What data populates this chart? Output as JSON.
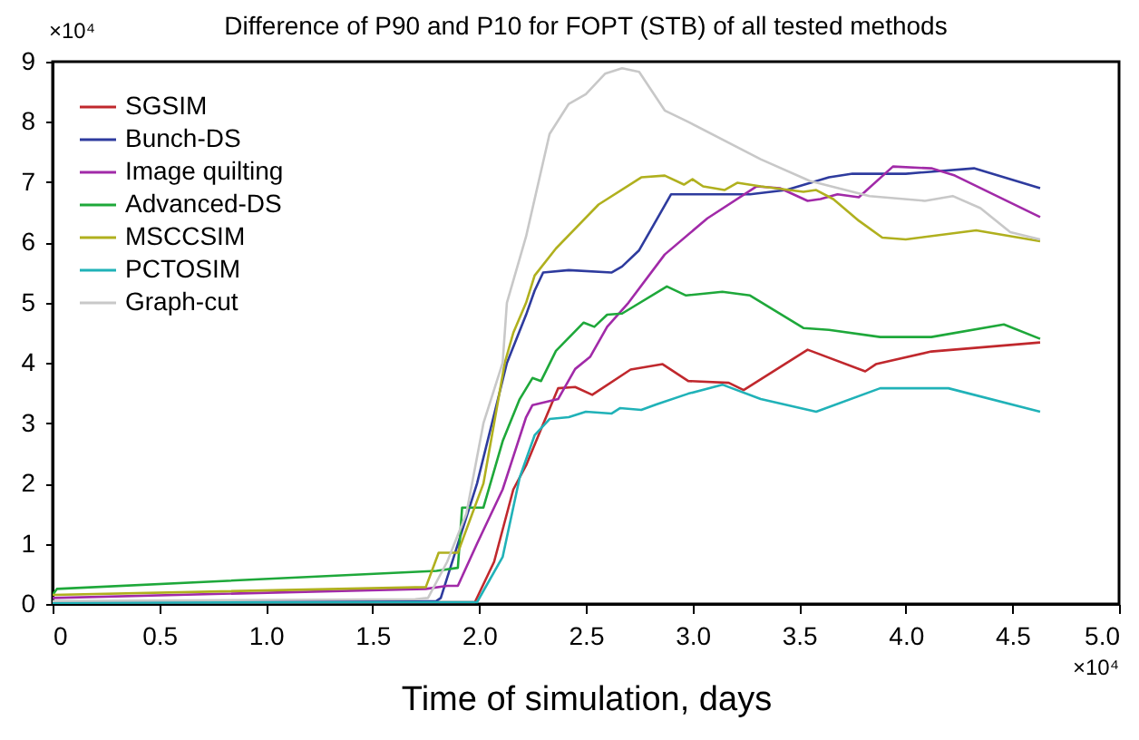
{
  "chart_data": {
    "type": "line",
    "title": "Difference of P90 and P10 for FOPT (STB) of all tested methods",
    "xlabel": "Time of simulation, days",
    "annotations": [
      "×10⁴",
      "×10⁴"
    ],
    "xlim": [
      0,
      5
    ],
    "xticks": [
      0,
      0.5,
      {
        "value": 1,
        "label": "1.0"
      },
      1.5,
      {
        "value": 2,
        "label": "2.0"
      },
      2.5,
      {
        "value": 3,
        "label": "3.0"
      },
      3.5,
      {
        "value": 4,
        "label": "4.0"
      },
      4.5,
      {
        "value": 5,
        "label": "5.0"
      }
    ],
    "ylim": [
      0,
      9
    ],
    "yticks": [
      0,
      1,
      2,
      3,
      4,
      5,
      6,
      7,
      8,
      9
    ],
    "grid": false,
    "legend": "top left",
    "line_style": "solid",
    "series": [
      {
        "name": "SGSIM",
        "color": "#c0282d",
        "x": [
          0,
          1.9,
          1.98,
          2.07,
          2.16,
          2.22,
          2.29,
          2.37,
          2.45,
          2.53,
          2.71,
          2.86,
          2.98,
          3.17,
          3.24,
          3.54,
          3.81,
          3.86,
          4.12,
          4.63
        ],
        "values": [
          0.02,
          0.03,
          0.03,
          0.7,
          1.9,
          2.3,
          2.9,
          3.58,
          3.6,
          3.47,
          3.89,
          3.98,
          3.7,
          3.67,
          3.55,
          4.22,
          3.86,
          3.98,
          4.19,
          4.34
        ]
      },
      {
        "name": "Bunch-DS",
        "color": "#2e3b9e",
        "x": [
          0,
          1.8,
          1.82,
          1.99,
          2.13,
          2.22,
          2.26,
          2.3,
          2.42,
          2.62,
          2.67,
          2.75,
          2.9,
          3.27,
          3.44,
          3.64,
          3.75,
          4.0,
          4.32,
          4.63
        ],
        "values": [
          0.03,
          0.05,
          0.1,
          2.0,
          4.0,
          4.8,
          5.2,
          5.5,
          5.54,
          5.5,
          5.6,
          5.87,
          6.8,
          6.8,
          6.87,
          7.08,
          7.14,
          7.14,
          7.23,
          6.9
        ]
      },
      {
        "name": "Image quilting",
        "color": "#a12aa8",
        "x": [
          0,
          1.75,
          1.85,
          1.9,
          1.99,
          2.11,
          2.22,
          2.25,
          2.37,
          2.45,
          2.52,
          2.6,
          2.7,
          2.87,
          3.07,
          3.3,
          3.41,
          3.54,
          3.6,
          3.68,
          3.78,
          3.94,
          4.12,
          4.23,
          4.63
        ],
        "values": [
          0.1,
          0.25,
          0.3,
          0.3,
          1.0,
          1.9,
          3.1,
          3.3,
          3.4,
          3.9,
          4.1,
          4.6,
          5.0,
          5.8,
          6.4,
          6.93,
          6.9,
          6.69,
          6.72,
          6.8,
          6.75,
          7.26,
          7.23,
          7.11,
          6.42
        ]
      },
      {
        "name": "Advanced-DS",
        "color": "#1ea83a",
        "x": [
          0,
          0.02,
          1.8,
          1.9,
          1.92,
          2.02,
          2.11,
          2.19,
          2.25,
          2.29,
          2.36,
          2.49,
          2.54,
          2.6,
          2.67,
          2.88,
          2.97,
          3.14,
          3.27,
          3.52,
          3.64,
          3.88,
          4.12,
          4.46,
          4.63
        ],
        "values": [
          0.15,
          0.25,
          0.55,
          0.6,
          1.6,
          1.6,
          2.7,
          3.4,
          3.75,
          3.7,
          4.2,
          4.67,
          4.6,
          4.8,
          4.82,
          5.27,
          5.12,
          5.18,
          5.12,
          4.58,
          4.55,
          4.43,
          4.43,
          4.64,
          4.4
        ]
      },
      {
        "name": "MSCCSIM",
        "color": "#b0b01e",
        "x": [
          0,
          1.75,
          1.81,
          1.9,
          2.02,
          2.12,
          2.16,
          2.22,
          2.26,
          2.36,
          2.56,
          2.76,
          2.87,
          2.96,
          3.0,
          3.05,
          3.15,
          3.21,
          3.32,
          3.52,
          3.58,
          3.66,
          3.78,
          3.89,
          4.0,
          4.33,
          4.63
        ],
        "values": [
          0.15,
          0.28,
          0.85,
          0.85,
          2.0,
          4.0,
          4.5,
          5.0,
          5.45,
          5.9,
          6.63,
          7.08,
          7.11,
          6.96,
          7.05,
          6.93,
          6.87,
          6.99,
          6.93,
          6.84,
          6.87,
          6.72,
          6.36,
          6.08,
          6.05,
          6.2,
          6.02
        ]
      },
      {
        "name": "PCTOSIM",
        "color": "#20b2b8",
        "x": [
          0,
          1.9,
          1.99,
          2.11,
          2.19,
          2.26,
          2.33,
          2.42,
          2.5,
          2.62,
          2.66,
          2.76,
          2.83,
          2.98,
          3.14,
          3.32,
          3.58,
          3.88,
          4.2,
          4.63
        ],
        "values": [
          0.02,
          0.03,
          0.03,
          0.78,
          2.1,
          2.8,
          3.07,
          3.1,
          3.19,
          3.16,
          3.25,
          3.22,
          3.31,
          3.49,
          3.64,
          3.4,
          3.19,
          3.58,
          3.58,
          3.19
        ]
      },
      {
        "name": "Graph-cut",
        "color": "#c8c8c8",
        "x": [
          0,
          1.7,
          1.76,
          1.85,
          1.94,
          2.02,
          2.11,
          2.13,
          2.22,
          2.33,
          2.42,
          2.5,
          2.59,
          2.67,
          2.75,
          2.87,
          2.98,
          3.32,
          3.55,
          3.83,
          4.09,
          4.22,
          4.35,
          4.49,
          4.63
        ],
        "values": [
          0.05,
          0.08,
          0.1,
          0.7,
          1.5,
          3.0,
          4.0,
          5.0,
          6.1,
          7.8,
          8.3,
          8.46,
          8.8,
          8.89,
          8.83,
          8.19,
          8.0,
          7.38,
          7.02,
          6.77,
          6.69,
          6.77,
          6.57,
          6.17,
          6.05
        ]
      }
    ]
  }
}
